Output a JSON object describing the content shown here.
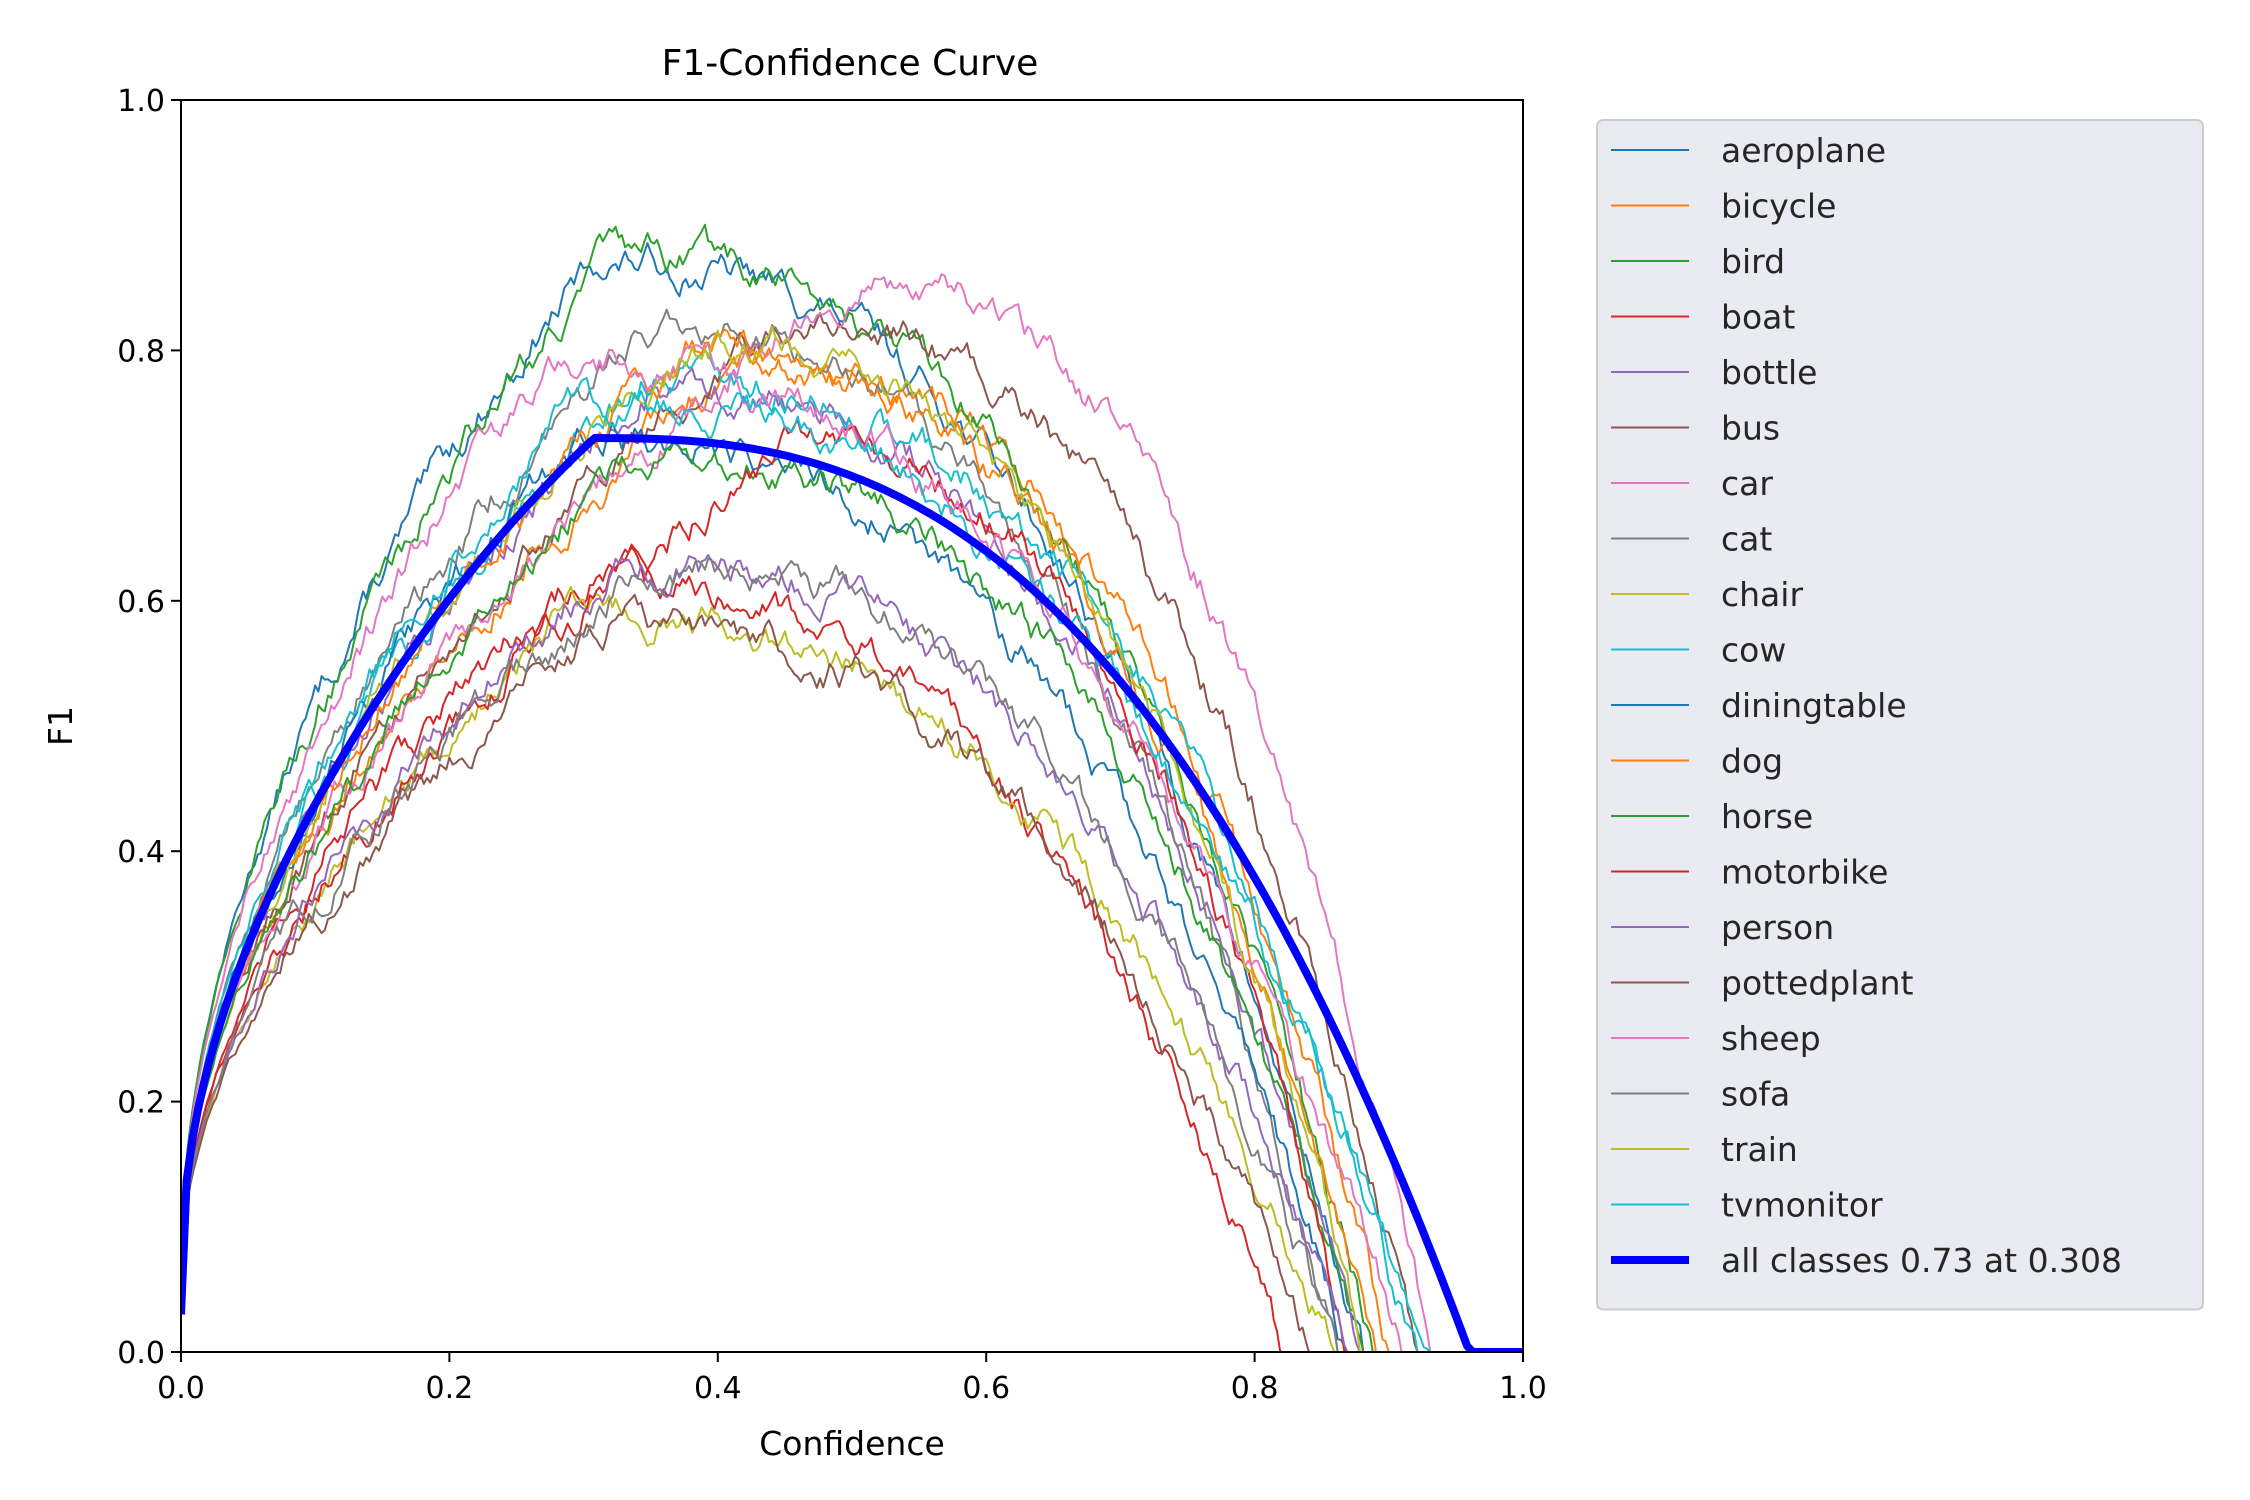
{
  "chart_data": {
    "type": "line",
    "title": "F1-Confidence Curve",
    "xlabel": "Confidence",
    "ylabel": "F1",
    "xlim": [
      0.0,
      1.0
    ],
    "ylim": [
      0.0,
      1.0
    ],
    "xticks": [
      "0.0",
      "0.2",
      "0.4",
      "0.6",
      "0.8",
      "1.0"
    ],
    "yticks": [
      "0.0",
      "0.2",
      "0.4",
      "0.6",
      "0.8",
      "1.0"
    ],
    "grid": false,
    "legend_position": "outside-right",
    "series": [
      {
        "name": "aeroplane",
        "color": "#1f77b4",
        "peak": 0.87,
        "peak_at": 0.31,
        "drop": 0.88
      },
      {
        "name": "bicycle",
        "color": "#ff7f0e",
        "peak": 0.79,
        "peak_at": 0.42,
        "drop": 0.9
      },
      {
        "name": "bird",
        "color": "#2ca02c",
        "peak": 0.875,
        "peak_at": 0.32,
        "drop": 0.89
      },
      {
        "name": "boat",
        "color": "#d62728",
        "peak": 0.62,
        "peak_at": 0.3,
        "drop": 0.82
      },
      {
        "name": "bottle",
        "color": "#9467bd",
        "peak": 0.77,
        "peak_at": 0.35,
        "drop": 0.88
      },
      {
        "name": "bus",
        "color": "#8c564b",
        "peak": 0.82,
        "peak_at": 0.45,
        "drop": 0.92
      },
      {
        "name": "car",
        "color": "#e377c2",
        "peak": 0.85,
        "peak_at": 0.5,
        "drop": 0.93
      },
      {
        "name": "cat",
        "color": "#7f7f7f",
        "peak": 0.82,
        "peak_at": 0.35,
        "drop": 0.86
      },
      {
        "name": "chair",
        "color": "#bcbd22",
        "peak": 0.59,
        "peak_at": 0.3,
        "drop": 0.86
      },
      {
        "name": "cow",
        "color": "#17becf",
        "peak": 0.78,
        "peak_at": 0.35,
        "drop": 0.92
      },
      {
        "name": "diningtable",
        "color": "#1f77b4",
        "peak": 0.73,
        "peak_at": 0.3,
        "drop": 0.87
      },
      {
        "name": "dog",
        "color": "#ff7f0e",
        "peak": 0.8,
        "peak_at": 0.38,
        "drop": 0.89
      },
      {
        "name": "horse",
        "color": "#2ca02c",
        "peak": 0.72,
        "peak_at": 0.35,
        "drop": 0.88
      },
      {
        "name": "motorbike",
        "color": "#d62728",
        "peak": 0.72,
        "peak_at": 0.45,
        "drop": 0.87
      },
      {
        "name": "person",
        "color": "#9467bd",
        "peak": 0.63,
        "peak_at": 0.33,
        "drop": 0.87
      },
      {
        "name": "pottedplant",
        "color": "#8c564b",
        "peak": 0.58,
        "peak_at": 0.32,
        "drop": 0.84
      },
      {
        "name": "sheep",
        "color": "#e377c2",
        "peak": 0.79,
        "peak_at": 0.28,
        "drop": 0.91
      },
      {
        "name": "sofa",
        "color": "#7f7f7f",
        "peak": 0.63,
        "peak_at": 0.35,
        "drop": 0.86
      },
      {
        "name": "train",
        "color": "#bcbd22",
        "peak": 0.81,
        "peak_at": 0.38,
        "drop": 0.88
      },
      {
        "name": "tvmonitor",
        "color": "#17becf",
        "peak": 0.76,
        "peak_at": 0.3,
        "drop": 0.93
      },
      {
        "name": "all classes 0.73 at 0.308",
        "color": "#0000ff",
        "bold": true,
        "peak": 0.73,
        "peak_at": 0.308,
        "drop": 0.96
      }
    ]
  }
}
